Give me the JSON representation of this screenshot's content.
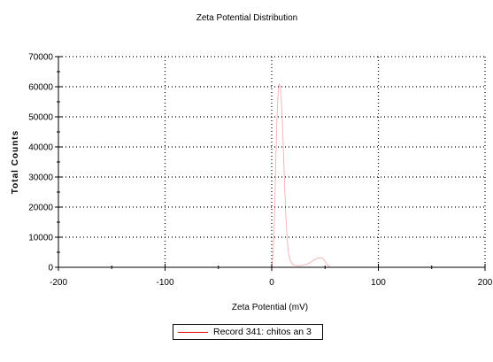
{
  "chart_data": {
    "type": "line",
    "title": "Zeta Potential Distribution",
    "xlabel": "Zeta Potential (mV)",
    "ylabel": "Total Counts",
    "xlim": [
      -200,
      200
    ],
    "ylim": [
      0,
      70000
    ],
    "x_ticks": [
      "-200",
      "-100",
      "0",
      "100",
      "200"
    ],
    "y_ticks": [
      "0",
      "10000",
      "20000",
      "30000",
      "40000",
      "50000",
      "60000",
      "70000"
    ],
    "grid": true,
    "legend_position": "bottom-center",
    "series": [
      {
        "name": "Record 341: chitos an 3",
        "color": "#e00000",
        "x": [
          -1,
          0,
          1,
          2,
          3,
          4,
          5,
          6,
          7,
          8,
          9,
          10,
          11,
          12,
          13,
          14,
          15,
          16,
          18,
          20,
          22,
          25,
          28,
          31,
          34,
          37,
          40,
          43,
          46,
          48,
          50,
          52,
          55
        ],
        "y": [
          0,
          500,
          3000,
          10000,
          22000,
          37000,
          50000,
          58000,
          61000,
          60000,
          56000,
          48000,
          38000,
          28000,
          19000,
          12000,
          7000,
          4000,
          1800,
          900,
          600,
          500,
          600,
          800,
          1200,
          1800,
          2500,
          3000,
          3200,
          3000,
          2000,
          800,
          0
        ]
      }
    ]
  }
}
